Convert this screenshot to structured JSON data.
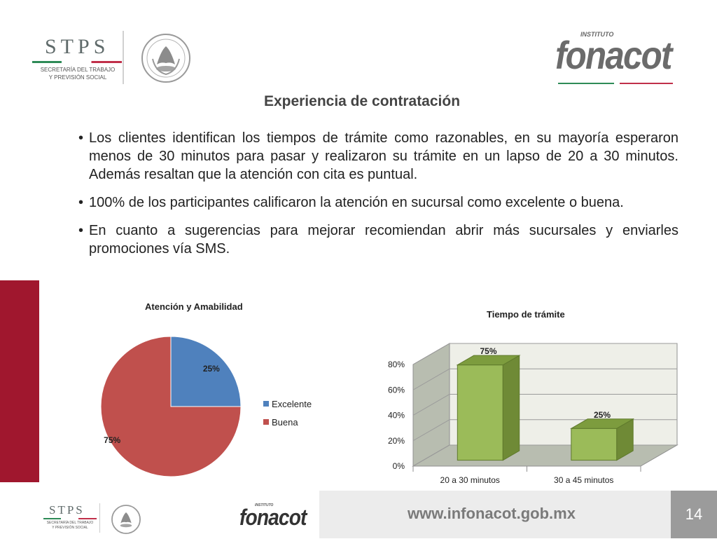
{
  "header": {
    "stps_abbr": "STPS",
    "stps_name_line1": "SECRETARÍA DEL TRABAJO",
    "stps_name_line2": "Y PREVISIÓN SOCIAL",
    "seal_icon": "mexican-coat-of-arms-seal",
    "fonacot_prefix": "INSTITUTO",
    "fonacot_name": "fonacot"
  },
  "title": "Experiencia de contratación",
  "bullets": [
    "Los clientes identifican los tiempos de trámite como razonables, en su mayoría esperaron menos de 30 minutos para pasar y realizaron su trámite en un lapso de 20 a 30 minutos. Además resaltan que la atención con cita es puntual.",
    "100% de los participantes calificaron la atención en sucursal como excelente o buena.",
    "En cuanto a sugerencias para mejorar recomiendan abrir más sucursales y enviarles promociones vía SMS."
  ],
  "bullet_glyph": "•",
  "colors": {
    "sidebar_red": "#a0172e",
    "pie_blue": "#4f81bd",
    "pie_red": "#c0504d",
    "bar_green": "#9bbb59",
    "brand_green": "#2e8b57",
    "brand_red": "#c0304a",
    "footer_grey": "#ececec"
  },
  "chart_data": [
    {
      "type": "pie",
      "title": "Atención y Amabilidad",
      "categories": [
        "Excelente",
        "Buena"
      ],
      "values": [
        25,
        75
      ],
      "labels": [
        "25%",
        "75%"
      ],
      "legend": "right"
    },
    {
      "type": "bar",
      "title": "Tiempo de trámite",
      "categories": [
        "20 a 30 minutos",
        "30 a 45 minutos"
      ],
      "values": [
        75,
        25
      ],
      "labels": [
        "75%",
        "25%"
      ],
      "yticks": [
        "0%",
        "20%",
        "40%",
        "60%",
        "80%"
      ],
      "ylim": [
        0,
        80
      ],
      "grid": true,
      "style": "3d"
    }
  ],
  "footer": {
    "url": "www.infonacot.gob.mx",
    "page_number": "14",
    "stps_abbr": "STPS",
    "stps_name_line1": "SECRETARÍA DEL TRABAJO",
    "stps_name_line2": "Y PREVISIÓN SOCIAL",
    "fonacot_prefix": "INSTITUTO",
    "fonacot_name": "fonacot"
  }
}
